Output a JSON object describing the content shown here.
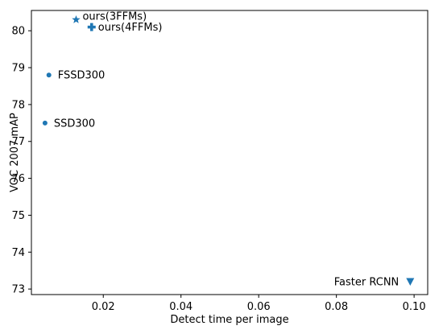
{
  "chart_data": {
    "type": "scatter",
    "title": "",
    "xlabel": "Detect time per image",
    "ylabel": "VOC 2007 mAP",
    "xlim": [
      0.0015,
      0.1035
    ],
    "ylim": [
      72.85,
      80.55
    ],
    "xticks": [
      0.02,
      0.04,
      0.06,
      0.08,
      0.1
    ],
    "xtick_labels": [
      "0.02",
      "0.04",
      "0.06",
      "0.08",
      "0.10"
    ],
    "yticks": [
      73,
      74,
      75,
      76,
      77,
      78,
      79,
      80
    ],
    "ytick_labels": [
      "73",
      "74",
      "75",
      "76",
      "77",
      "78",
      "79",
      "80"
    ],
    "grid": false,
    "color": "#1f77b4",
    "points": [
      {
        "label": "SSD300",
        "x": 0.005,
        "y": 77.5,
        "marker": "dot",
        "label_side": "right"
      },
      {
        "label": "FSSD300",
        "x": 0.006,
        "y": 78.8,
        "marker": "dot",
        "label_side": "right"
      },
      {
        "label": "ours(3FFMs)",
        "x": 0.013,
        "y": 80.3,
        "marker": "star",
        "label_side": "right"
      },
      {
        "label": "ours(4FFMs)",
        "x": 0.017,
        "y": 80.1,
        "marker": "plus",
        "label_side": "right"
      },
      {
        "label": "Faster RCNN",
        "x": 0.099,
        "y": 73.2,
        "marker": "triangle-down",
        "label_side": "left"
      }
    ]
  }
}
